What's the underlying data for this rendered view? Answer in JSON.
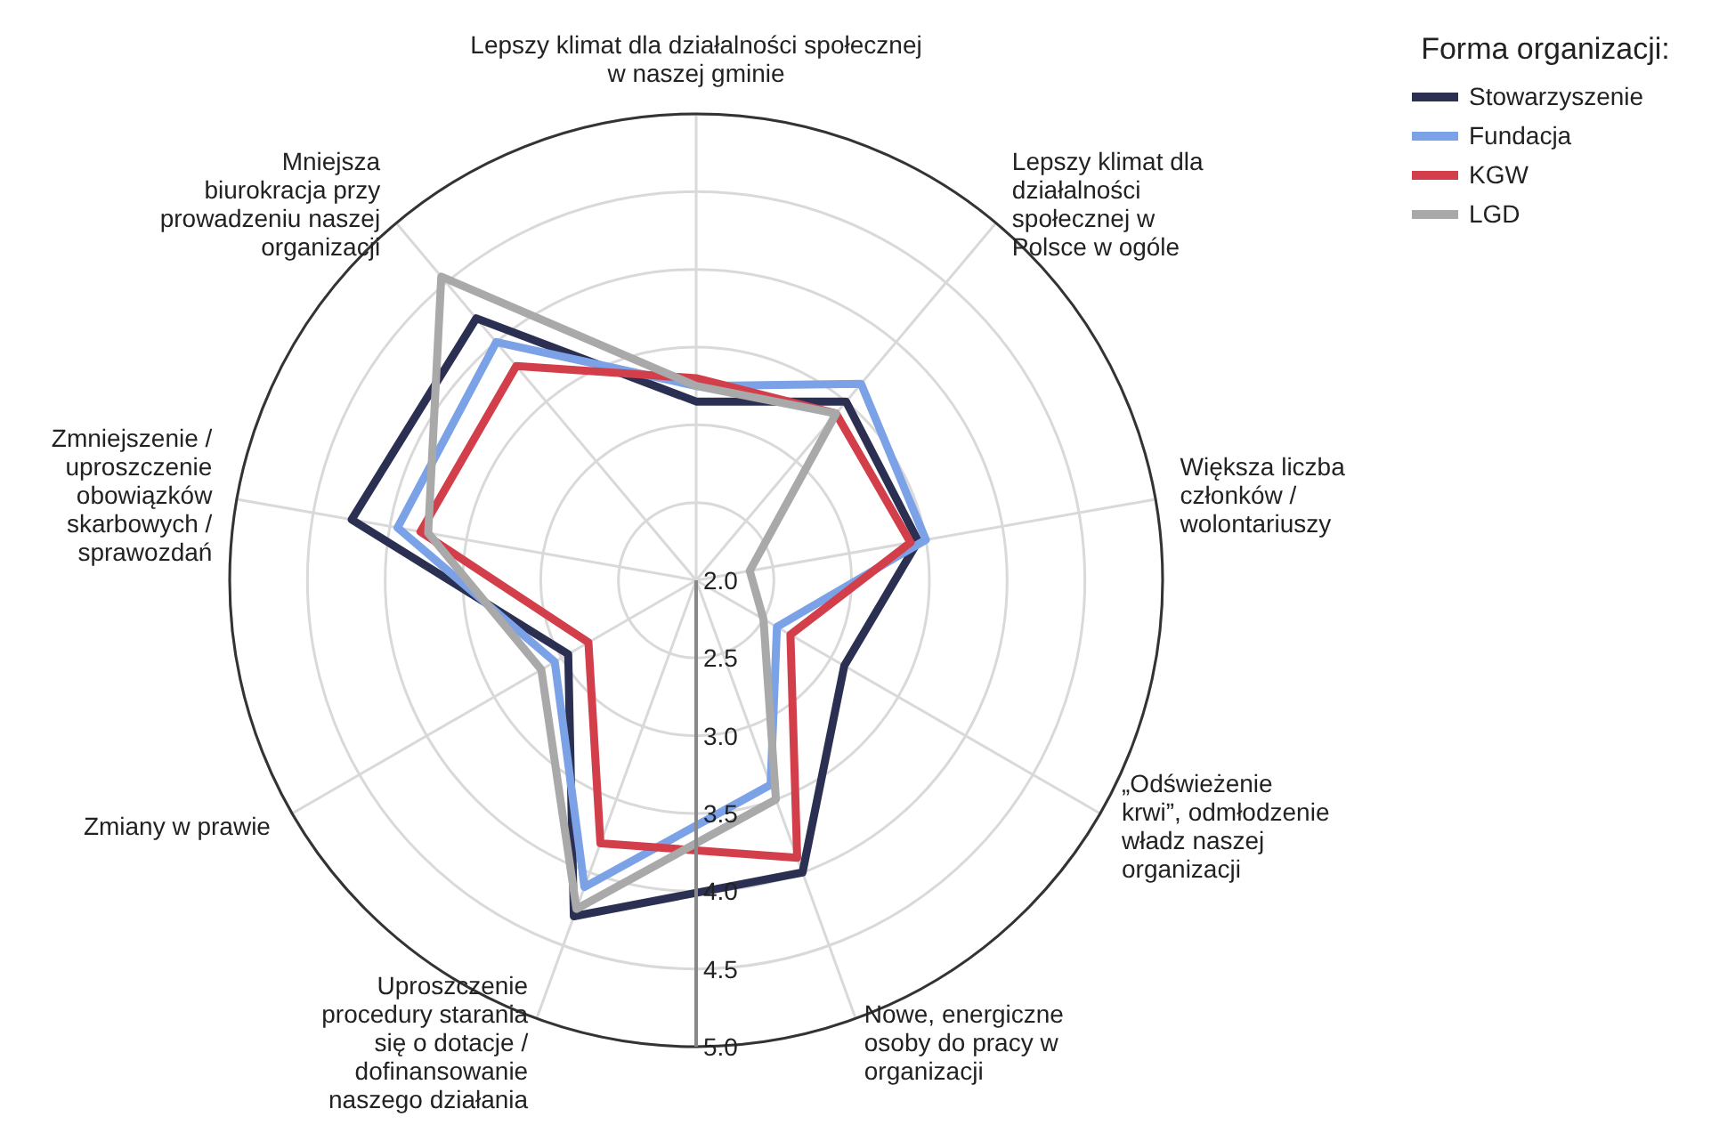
{
  "chart_data": {
    "type": "radar",
    "legend_title": "Forma organizacji:",
    "legend": "top right",
    "categories": [
      "Lepszy klimat dla działalności społecznej w naszej gminie",
      "Lepszy klimat dla działalności społecznej w Polsce w ogóle",
      "Większa liczba członków / wolontariuszy",
      "„Odświeżenie krwi”, odmłodzenie władz naszej organizacji",
      "Nowe, energiczne osoby do pracy w organizacji",
      "Uproszczenie procedury starania się o dotacje / dofinansowanie naszego działania",
      "Zmiany w prawie",
      "Zmniejszenie / uproszczenie obowiązków skarbowych / sprawozdań",
      "Mniejsza biurokracja przy prowadzeniu naszej organizacji"
    ],
    "series": [
      {
        "name": "Stowarzyszenie",
        "color": "#2b2f52",
        "values": [
          3.15,
          3.5,
          3.45,
          3.1,
          4.0,
          4.3,
          2.95,
          4.25,
          4.2
        ]
      },
      {
        "name": "Fundacja",
        "color": "#7ba2e6",
        "values": [
          3.25,
          3.65,
          3.5,
          2.6,
          3.4,
          4.1,
          3.05,
          3.95,
          4.0
        ]
      },
      {
        "name": "KGW",
        "color": "#d23f4a",
        "values": [
          3.3,
          3.4,
          3.4,
          2.7,
          3.9,
          3.8,
          2.8,
          3.8,
          3.8
        ]
      },
      {
        "name": "LGD",
        "color": "#a9a9a9",
        "values": [
          3.25,
          3.4,
          2.35,
          2.5,
          3.5,
          4.25,
          3.15,
          3.75,
          4.55
        ]
      }
    ],
    "ylim": [
      2,
      5
    ],
    "yticks": [
      {
        "value": 2,
        "label": "2.0"
      },
      2.5,
      {
        "value": 3,
        "label": "3.0"
      },
      3.5,
      {
        "value": 4,
        "label": "4.0"
      },
      4.5,
      {
        "value": 5,
        "label": "5.0"
      }
    ],
    "grid": true,
    "marker": "none",
    "line_style": "solid"
  }
}
